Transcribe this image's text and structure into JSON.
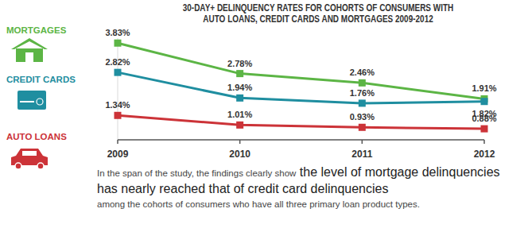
{
  "chart_data": {
    "type": "line",
    "title": [
      "30-DAY+ DELINQUENCY RATES FOR COHORTS OF CONSUMERS WITH",
      "AUTO LOANS, CREDIT CARDS AND MORTGAGES 2009-2012"
    ],
    "categories": [
      "2009",
      "2010",
      "2011",
      "2012"
    ],
    "series": [
      {
        "name": "MORTGAGES",
        "color": "#5cb545",
        "values": [
          3.83,
          2.78,
          2.46,
          1.91
        ],
        "value_labels": [
          "3.83%",
          "2.78%",
          "2.46%",
          "1.91%"
        ]
      },
      {
        "name": "CREDIT CARDS",
        "color": "#1f8ea0",
        "values": [
          2.82,
          1.94,
          1.76,
          1.82
        ],
        "value_labels": [
          "2.82%",
          "1.94%",
          "1.76%",
          "1.82%"
        ]
      },
      {
        "name": "AUTO LOANS",
        "color": "#cc3338",
        "values": [
          1.34,
          1.01,
          0.93,
          0.88
        ],
        "value_labels": [
          "1.34%",
          "1.01%",
          "0.93%",
          "0.88%"
        ]
      }
    ],
    "ylim": [
      0.5,
      4.0
    ],
    "tick_labels": "x",
    "grid": false,
    "data_labels": true,
    "marker": "square",
    "legend": "left",
    "annotation": {
      "lead": "In the span of the study, the findings clearly show",
      "highlight": "the level of mortgage delinquencies has nearly reached that of credit card delinquencies",
      "tail": "among the cohorts of consumers who have all three primary loan product types."
    }
  }
}
